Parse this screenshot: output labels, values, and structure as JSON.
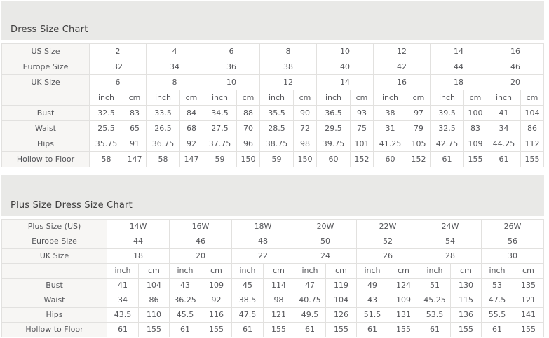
{
  "colors": {
    "band_bg": "#e9e9e7",
    "label_bg": "#f7f6f4",
    "border": "#e2e1df",
    "text": "#55565a",
    "title_text": "#3f3e3e"
  },
  "standard_chart": {
    "title": "Dress Size Chart",
    "size_rows": [
      {
        "label": "US Size",
        "values": [
          "2",
          "4",
          "6",
          "8",
          "10",
          "12",
          "14",
          "16"
        ]
      },
      {
        "label": "Europe Size",
        "values": [
          "32",
          "34",
          "36",
          "38",
          "40",
          "42",
          "44",
          "46"
        ]
      },
      {
        "label": "UK Size",
        "values": [
          "6",
          "8",
          "10",
          "12",
          "14",
          "16",
          "18",
          "20"
        ]
      }
    ],
    "units": [
      "inch",
      "cm"
    ],
    "measure_rows": [
      {
        "label": "Bust",
        "cells": [
          [
            "32.5",
            "83"
          ],
          [
            "33.5",
            "84"
          ],
          [
            "34.5",
            "88"
          ],
          [
            "35.5",
            "90"
          ],
          [
            "36.5",
            "93"
          ],
          [
            "38",
            "97"
          ],
          [
            "39.5",
            "100"
          ],
          [
            "41",
            "104"
          ]
        ]
      },
      {
        "label": "Waist",
        "cells": [
          [
            "25.5",
            "65"
          ],
          [
            "26.5",
            "68"
          ],
          [
            "27.5",
            "70"
          ],
          [
            "28.5",
            "72"
          ],
          [
            "29.5",
            "75"
          ],
          [
            "31",
            "79"
          ],
          [
            "32.5",
            "83"
          ],
          [
            "34",
            "86"
          ]
        ]
      },
      {
        "label": "Hips",
        "cells": [
          [
            "35.75",
            "91"
          ],
          [
            "36.75",
            "92"
          ],
          [
            "37.75",
            "96"
          ],
          [
            "38.75",
            "98"
          ],
          [
            "39.75",
            "101"
          ],
          [
            "41.25",
            "105"
          ],
          [
            "42.75",
            "109"
          ],
          [
            "44.25",
            "112"
          ]
        ]
      },
      {
        "label": "Hollow to Floor",
        "cells": [
          [
            "58",
            "147"
          ],
          [
            "58",
            "147"
          ],
          [
            "59",
            "150"
          ],
          [
            "59",
            "150"
          ],
          [
            "60",
            "152"
          ],
          [
            "60",
            "152"
          ],
          [
            "61",
            "155"
          ],
          [
            "61",
            "155"
          ]
        ]
      }
    ]
  },
  "plus_chart": {
    "title": "Plus Size Dress Size Chart",
    "size_rows": [
      {
        "label": "Plus Size (US)",
        "values": [
          "14W",
          "16W",
          "18W",
          "20W",
          "22W",
          "24W",
          "26W"
        ]
      },
      {
        "label": "Europe Size",
        "values": [
          "44",
          "46",
          "48",
          "50",
          "52",
          "54",
          "56"
        ]
      },
      {
        "label": "UK Size",
        "values": [
          "18",
          "20",
          "22",
          "24",
          "26",
          "28",
          "30"
        ]
      }
    ],
    "units": [
      "inch",
      "cm"
    ],
    "measure_rows": [
      {
        "label": "Bust",
        "cells": [
          [
            "41",
            "104"
          ],
          [
            "43",
            "109"
          ],
          [
            "45",
            "114"
          ],
          [
            "47",
            "119"
          ],
          [
            "49",
            "124"
          ],
          [
            "51",
            "130"
          ],
          [
            "53",
            "135"
          ]
        ]
      },
      {
        "label": "Waist",
        "cells": [
          [
            "34",
            "86"
          ],
          [
            "36.25",
            "92"
          ],
          [
            "38.5",
            "98"
          ],
          [
            "40.75",
            "104"
          ],
          [
            "43",
            "109"
          ],
          [
            "45.25",
            "115"
          ],
          [
            "47.5",
            "121"
          ]
        ]
      },
      {
        "label": "Hips",
        "cells": [
          [
            "43.5",
            "110"
          ],
          [
            "45.5",
            "116"
          ],
          [
            "47.5",
            "121"
          ],
          [
            "49.5",
            "126"
          ],
          [
            "51.5",
            "131"
          ],
          [
            "53.5",
            "136"
          ],
          [
            "55.5",
            "141"
          ]
        ]
      },
      {
        "label": "Hollow to Floor",
        "cells": [
          [
            "61",
            "155"
          ],
          [
            "61",
            "155"
          ],
          [
            "61",
            "155"
          ],
          [
            "61",
            "155"
          ],
          [
            "61",
            "155"
          ],
          [
            "61",
            "155"
          ],
          [
            "61",
            "155"
          ]
        ]
      }
    ]
  }
}
